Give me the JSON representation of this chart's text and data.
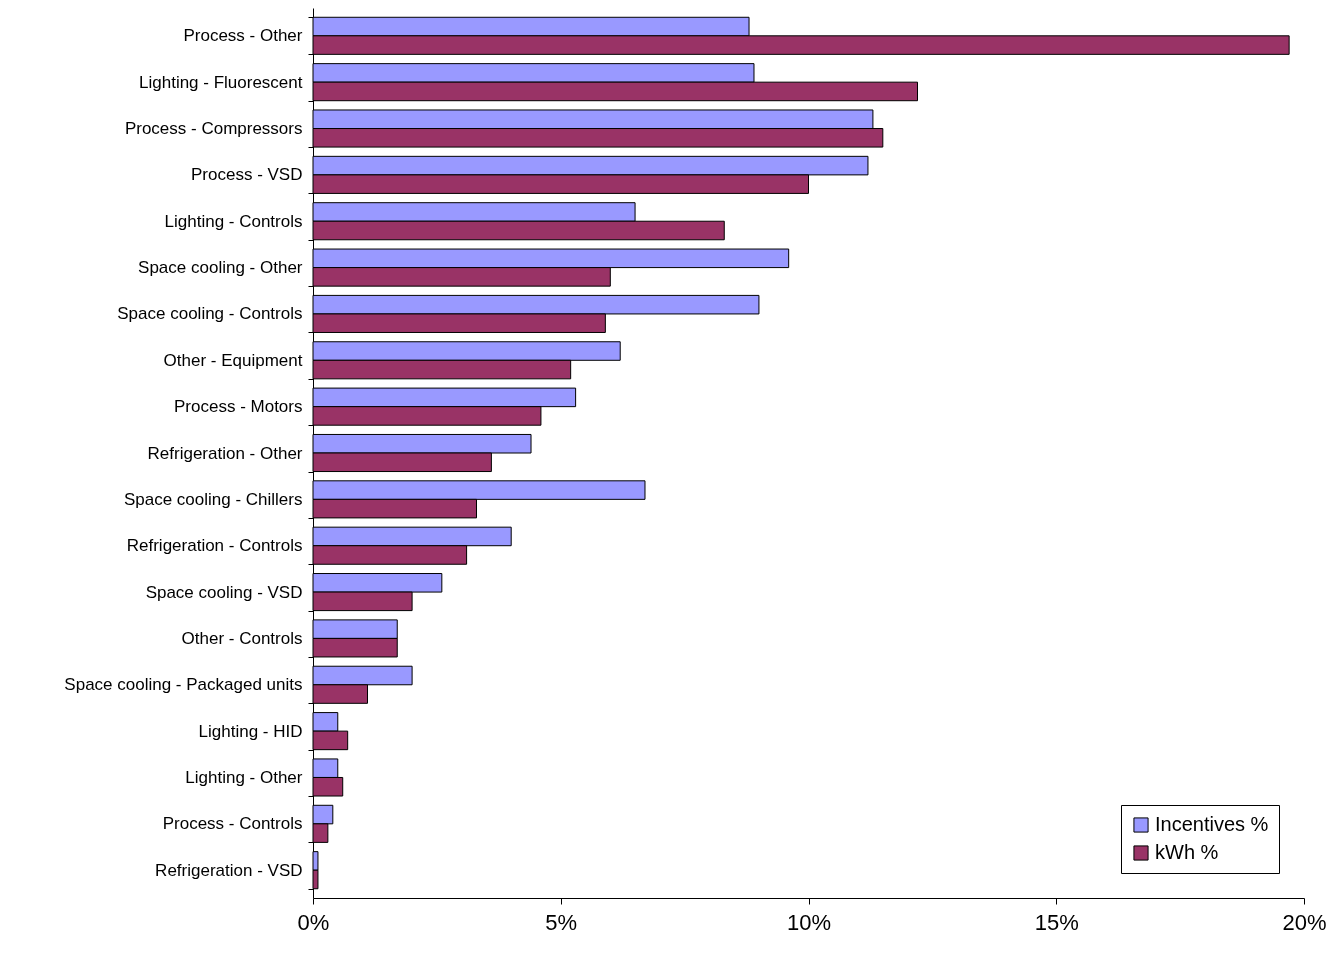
{
  "chart_data": {
    "type": "bar",
    "orientation": "horizontal",
    "categories": [
      "Process - Other",
      "Lighting - Fluorescent",
      "Process - Compressors",
      "Process - VSD",
      "Lighting - Controls",
      "Space cooling - Other",
      "Space cooling - Controls",
      "Other - Equipment",
      "Process - Motors",
      "Refrigeration - Other",
      "Space cooling - Chillers",
      "Refrigeration - Controls",
      "Space cooling - VSD",
      "Other - Controls",
      "Space cooling - Packaged units",
      "Lighting - HID",
      "Lighting - Other",
      "Process - Controls",
      "Refrigeration - VSD"
    ],
    "series": [
      {
        "name": "Incentives %",
        "color": "#9999ff",
        "values": [
          8.8,
          8.9,
          11.3,
          11.2,
          6.5,
          9.6,
          9.0,
          6.2,
          5.3,
          4.4,
          6.7,
          4.0,
          2.6,
          1.7,
          2.0,
          0.5,
          0.5,
          0.4,
          0.1
        ]
      },
      {
        "name": "kWh %",
        "color": "#993366",
        "values": [
          19.7,
          12.2,
          11.5,
          10.0,
          8.3,
          6.0,
          5.9,
          5.2,
          4.6,
          3.6,
          3.3,
          3.1,
          2.0,
          1.7,
          1.1,
          0.7,
          0.6,
          0.3,
          0.1
        ]
      }
    ],
    "xlim": [
      0,
      20
    ],
    "xticks": [
      {
        "value": 0,
        "label": "0%"
      },
      {
        "value": 5,
        "label": "5%"
      },
      {
        "value": 10,
        "label": "10%"
      },
      {
        "value": 15,
        "label": "15%"
      },
      {
        "value": 20,
        "label": "20%"
      }
    ],
    "grid": false,
    "legend": "bottom right"
  }
}
